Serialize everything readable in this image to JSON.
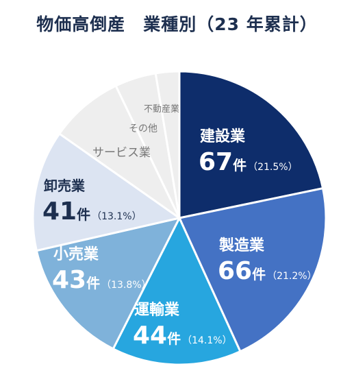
{
  "chart_data": {
    "type": "pie",
    "title": "物価高倒産　業種別（23 年累計）",
    "count_unit": "件",
    "slices": [
      {
        "name": "建設業",
        "count": 67,
        "pct_label": "（21.5%）",
        "color": "#0e2d6b",
        "text_color": "#ffffff"
      },
      {
        "name": "製造業",
        "count": 66,
        "pct_label": "（21.2%）",
        "color": "#4472c4",
        "text_color": "#ffffff"
      },
      {
        "name": "運輸業",
        "count": 44,
        "pct_label": "（14.1%）",
        "color": "#27a6df",
        "text_color": "#ffffff"
      },
      {
        "name": "小売業",
        "count": 43,
        "pct_label": "（13.8%）",
        "color": "#7fb2da",
        "text_color": "#ffffff"
      },
      {
        "name": "卸売業",
        "count": 41,
        "pct_label": "（13.1%）",
        "color": "#dce4f2",
        "text_color": "#1d2f4f"
      },
      {
        "name": "サービス業",
        "count": 25,
        "color": "#eeeeee",
        "text_color": "#777777"
      },
      {
        "name": "その他",
        "count": 14,
        "color": "#eeeeee",
        "text_color": "#777777"
      },
      {
        "name": "不動産業",
        "count": 8,
        "color": "#eeeeee",
        "text_color": "#777777"
      }
    ]
  }
}
